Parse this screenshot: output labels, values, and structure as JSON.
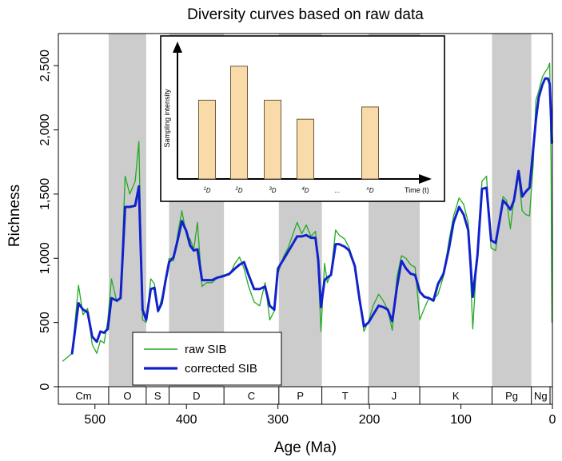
{
  "chart_data": {
    "type": "line",
    "title": "Diversity curves based on raw data",
    "xlabel": "Age (Ma)",
    "ylabel": "Richness",
    "xlim": [
      540,
      0
    ],
    "ylim": [
      0,
      2750
    ],
    "x_ticks": [
      {
        "value": 500,
        "label": "500"
      },
      {
        "value": 400,
        "label": "400"
      },
      {
        "value": 300,
        "label": "300"
      },
      {
        "value": 200,
        "label": "200"
      },
      {
        "value": 100,
        "label": "100"
      },
      {
        "value": 0,
        "label": "0"
      }
    ],
    "y_ticks": [
      {
        "value": 0,
        "label": "0"
      },
      {
        "value": 500,
        "label": "500"
      },
      {
        "value": 1000,
        "label": "1,000"
      },
      {
        "value": 1500,
        "label": "1,500"
      },
      {
        "value": 2000,
        "label": "2,000"
      },
      {
        "value": 2500,
        "label": "2,500"
      }
    ],
    "periods": [
      {
        "label": "Cm",
        "start": 541,
        "end": 485,
        "shaded": false
      },
      {
        "label": "O",
        "start": 485,
        "end": 444,
        "shaded": true
      },
      {
        "label": "S",
        "start": 444,
        "end": 419,
        "shaded": false
      },
      {
        "label": "D",
        "start": 419,
        "end": 359,
        "shaded": true
      },
      {
        "label": "C",
        "start": 359,
        "end": 299,
        "shaded": false
      },
      {
        "label": "P",
        "start": 299,
        "end": 252,
        "shaded": true
      },
      {
        "label": "T",
        "start": 252,
        "end": 201,
        "shaded": false
      },
      {
        "label": "J",
        "start": 201,
        "end": 145,
        "shaded": true
      },
      {
        "label": "K",
        "start": 145,
        "end": 66,
        "shaded": false
      },
      {
        "label": "Pg",
        "start": 66,
        "end": 23,
        "shaded": true
      },
      {
        "label": "Ng",
        "start": 23,
        "end": 2.6,
        "shaded": false
      }
    ],
    "series": [
      {
        "name": "raw SIB",
        "color": "#22aa22",
        "points": [
          [
            535,
            200
          ],
          [
            525,
            260
          ],
          [
            518,
            790
          ],
          [
            513,
            560
          ],
          [
            508,
            610
          ],
          [
            503,
            330
          ],
          [
            498,
            260
          ],
          [
            494,
            360
          ],
          [
            490,
            340
          ],
          [
            486,
            510
          ],
          [
            482,
            840
          ],
          [
            476,
            660
          ],
          [
            472,
            700
          ],
          [
            467,
            1640
          ],
          [
            462,
            1500
          ],
          [
            456,
            1600
          ],
          [
            452,
            1910
          ],
          [
            448,
            520
          ],
          [
            444,
            500
          ],
          [
            439,
            840
          ],
          [
            435,
            800
          ],
          [
            431,
            580
          ],
          [
            427,
            690
          ],
          [
            423,
            820
          ],
          [
            419,
            1000
          ],
          [
            414,
            980
          ],
          [
            409,
            1210
          ],
          [
            405,
            1370
          ],
          [
            400,
            1180
          ],
          [
            396,
            1150
          ],
          [
            392,
            1070
          ],
          [
            388,
            1280
          ],
          [
            383,
            780
          ],
          [
            378,
            810
          ],
          [
            372,
            810
          ],
          [
            366,
            850
          ],
          [
            360,
            870
          ],
          [
            353,
            870
          ],
          [
            347,
            960
          ],
          [
            342,
            1010
          ],
          [
            337,
            920
          ],
          [
            332,
            780
          ],
          [
            326,
            660
          ],
          [
            320,
            630
          ],
          [
            314,
            810
          ],
          [
            309,
            520
          ],
          [
            304,
            590
          ],
          [
            300,
            880
          ],
          [
            294,
            1010
          ],
          [
            289,
            1080
          ],
          [
            284,
            1180
          ],
          [
            279,
            1280
          ],
          [
            274,
            1190
          ],
          [
            269,
            1260
          ],
          [
            264,
            1170
          ],
          [
            259,
            1210
          ],
          [
            256,
            940
          ],
          [
            253,
            430
          ],
          [
            249,
            960
          ],
          [
            246,
            810
          ],
          [
            242,
            880
          ],
          [
            237,
            1220
          ],
          [
            233,
            1180
          ],
          [
            227,
            1150
          ],
          [
            222,
            1080
          ],
          [
            216,
            940
          ],
          [
            211,
            700
          ],
          [
            206,
            430
          ],
          [
            201,
            510
          ],
          [
            196,
            630
          ],
          [
            190,
            720
          ],
          [
            185,
            670
          ],
          [
            180,
            600
          ],
          [
            175,
            440
          ],
          [
            170,
            850
          ],
          [
            165,
            1020
          ],
          [
            160,
            1000
          ],
          [
            155,
            950
          ],
          [
            150,
            930
          ],
          [
            145,
            520
          ],
          [
            140,
            610
          ],
          [
            135,
            690
          ],
          [
            130,
            680
          ],
          [
            125,
            720
          ],
          [
            119,
            860
          ],
          [
            113,
            1140
          ],
          [
            108,
            1330
          ],
          [
            102,
            1470
          ],
          [
            97,
            1420
          ],
          [
            92,
            1280
          ],
          [
            87,
            450
          ],
          [
            82,
            1070
          ],
          [
            77,
            1600
          ],
          [
            72,
            1640
          ],
          [
            67,
            1080
          ],
          [
            62,
            1060
          ],
          [
            58,
            1300
          ],
          [
            54,
            1480
          ],
          [
            50,
            1450
          ],
          [
            46,
            1230
          ],
          [
            42,
            1460
          ],
          [
            37,
            1640
          ],
          [
            33,
            1370
          ],
          [
            29,
            1340
          ],
          [
            25,
            1330
          ],
          [
            21,
            1730
          ],
          [
            18,
            2230
          ],
          [
            15,
            2300
          ],
          [
            11,
            2410
          ],
          [
            8,
            2450
          ],
          [
            5,
            2480
          ],
          [
            3,
            2520
          ],
          [
            1.5,
            1750
          ],
          [
            0.5,
            500
          ]
        ]
      },
      {
        "name": "corrected SIB",
        "color": "#1122cc",
        "points": [
          [
            525,
            260
          ],
          [
            518,
            650
          ],
          [
            513,
            600
          ],
          [
            508,
            580
          ],
          [
            503,
            390
          ],
          [
            498,
            350
          ],
          [
            494,
            430
          ],
          [
            490,
            420
          ],
          [
            486,
            450
          ],
          [
            482,
            690
          ],
          [
            476,
            670
          ],
          [
            472,
            690
          ],
          [
            467,
            1400
          ],
          [
            462,
            1400
          ],
          [
            456,
            1410
          ],
          [
            452,
            1560
          ],
          [
            448,
            600
          ],
          [
            444,
            520
          ],
          [
            439,
            760
          ],
          [
            435,
            770
          ],
          [
            431,
            590
          ],
          [
            427,
            650
          ],
          [
            423,
            820
          ],
          [
            419,
            970
          ],
          [
            414,
            1010
          ],
          [
            409,
            1160
          ],
          [
            405,
            1290
          ],
          [
            400,
            1210
          ],
          [
            396,
            1100
          ],
          [
            392,
            1060
          ],
          [
            388,
            1070
          ],
          [
            383,
            830
          ],
          [
            378,
            830
          ],
          [
            372,
            830
          ],
          [
            366,
            850
          ],
          [
            360,
            860
          ],
          [
            353,
            880
          ],
          [
            347,
            920
          ],
          [
            342,
            950
          ],
          [
            337,
            970
          ],
          [
            332,
            870
          ],
          [
            326,
            760
          ],
          [
            320,
            760
          ],
          [
            314,
            780
          ],
          [
            309,
            630
          ],
          [
            304,
            600
          ],
          [
            300,
            920
          ],
          [
            294,
            990
          ],
          [
            289,
            1050
          ],
          [
            284,
            1110
          ],
          [
            279,
            1170
          ],
          [
            274,
            1170
          ],
          [
            269,
            1180
          ],
          [
            264,
            1160
          ],
          [
            259,
            1160
          ],
          [
            256,
            990
          ],
          [
            253,
            620
          ],
          [
            249,
            830
          ],
          [
            246,
            850
          ],
          [
            242,
            870
          ],
          [
            237,
            1110
          ],
          [
            233,
            1110
          ],
          [
            227,
            1090
          ],
          [
            222,
            1060
          ],
          [
            216,
            940
          ],
          [
            211,
            690
          ],
          [
            206,
            470
          ],
          [
            201,
            500
          ],
          [
            196,
            560
          ],
          [
            190,
            630
          ],
          [
            185,
            620
          ],
          [
            180,
            600
          ],
          [
            175,
            510
          ],
          [
            170,
            770
          ],
          [
            165,
            980
          ],
          [
            160,
            920
          ],
          [
            155,
            880
          ],
          [
            150,
            870
          ],
          [
            145,
            740
          ],
          [
            140,
            700
          ],
          [
            135,
            690
          ],
          [
            130,
            670
          ],
          [
            125,
            800
          ],
          [
            119,
            880
          ],
          [
            113,
            1080
          ],
          [
            108,
            1280
          ],
          [
            102,
            1400
          ],
          [
            97,
            1340
          ],
          [
            92,
            1220
          ],
          [
            87,
            700
          ],
          [
            82,
            1020
          ],
          [
            77,
            1540
          ],
          [
            72,
            1550
          ],
          [
            67,
            1140
          ],
          [
            62,
            1120
          ],
          [
            58,
            1280
          ],
          [
            54,
            1450
          ],
          [
            50,
            1420
          ],
          [
            46,
            1380
          ],
          [
            42,
            1450
          ],
          [
            37,
            1680
          ],
          [
            33,
            1480
          ],
          [
            29,
            1520
          ],
          [
            25,
            1550
          ],
          [
            21,
            1850
          ],
          [
            18,
            2080
          ],
          [
            15,
            2250
          ],
          [
            11,
            2350
          ],
          [
            8,
            2400
          ],
          [
            5,
            2400
          ],
          [
            3,
            2360
          ],
          [
            1.5,
            2100
          ],
          [
            0.5,
            1900
          ]
        ]
      }
    ],
    "inset": {
      "ylabel": "Sampling intensity",
      "xlabel": "Time (t)",
      "bars": [
        {
          "label": "1D",
          "sup": "1",
          "base": "D",
          "value": 0.58
        },
        {
          "label": "2D",
          "sup": "2",
          "base": "D",
          "value": 0.83
        },
        {
          "label": "3D",
          "sup": "3",
          "base": "D",
          "value": 0.58
        },
        {
          "label": "4D",
          "sup": "4",
          "base": "D",
          "value": 0.44
        },
        {
          "label": "nD",
          "sup": "n",
          "base": "D",
          "value": 0.53
        }
      ],
      "ellipsis": "...",
      "bar_color": "#f8dba8"
    },
    "legend": {
      "position": "bottom-left"
    }
  }
}
